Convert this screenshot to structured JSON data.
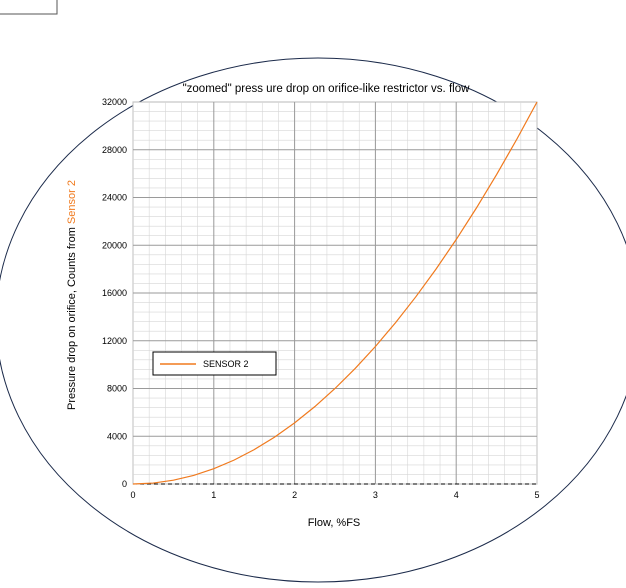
{
  "colors": {
    "curve": "#f07a1e",
    "ylabel_highlight": "#f07a1e",
    "frame": "#1b2a4a",
    "grid_major": "#9a9a9a",
    "grid_minor": "#d6d6d6"
  },
  "chart_data": {
    "type": "line",
    "title": "\"zoomed\" press ure drop on orifice-like restrictor vs. flow",
    "xlabel": "Flow, %FS",
    "ylabel_prefix": "Pressure drop on orifice, Counts from ",
    "ylabel_highlight": "Sensor 2",
    "xlim": [
      0,
      5
    ],
    "ylim": [
      0,
      32000
    ],
    "x_ticks": [
      "0",
      "1",
      "2",
      "3",
      "4",
      "5"
    ],
    "y_ticks": [
      "0",
      "4000",
      "8000",
      "12000",
      "16000",
      "20000",
      "24000",
      "28000",
      "32000"
    ],
    "grid": true,
    "legend": {
      "position": "left-middle",
      "entries": [
        "SENSOR 2"
      ]
    },
    "series": [
      {
        "name": "SENSOR 2",
        "x": [
          0,
          0.25,
          0.5,
          0.75,
          1.0,
          1.25,
          1.5,
          1.75,
          2.0,
          2.25,
          2.5,
          2.75,
          3.0,
          3.25,
          3.5,
          3.75,
          4.0,
          4.25,
          4.5,
          4.75,
          5.0
        ],
        "y": [
          0,
          80,
          320,
          720,
          1280,
          2000,
          2880,
          3920,
          5120,
          6480,
          8000,
          9680,
          11520,
          13520,
          15680,
          18000,
          20480,
          23120,
          25920,
          28880,
          32000
        ]
      }
    ]
  }
}
